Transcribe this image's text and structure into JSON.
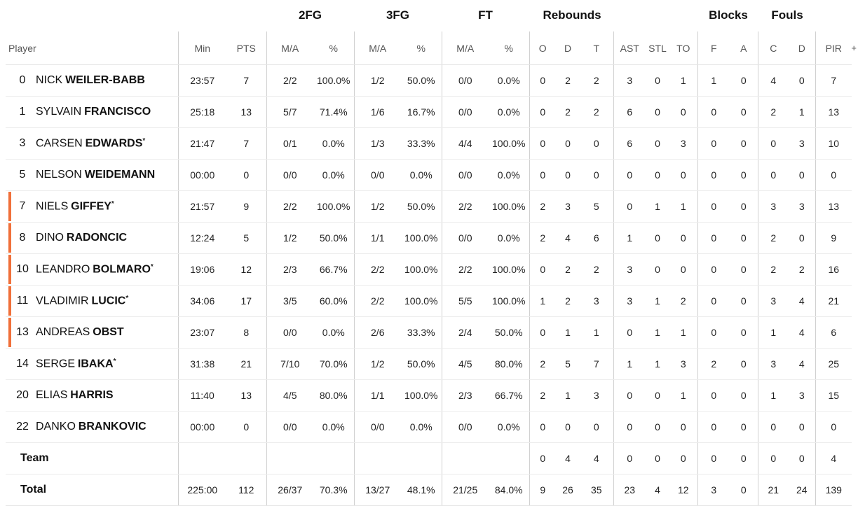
{
  "group_headers": {
    "fg2": "2FG",
    "fg3": "3FG",
    "ft": "FT",
    "rebounds": "Rebounds",
    "blocks": "Blocks",
    "fouls": "Fouls"
  },
  "columns": {
    "player": "Player",
    "min": "Min",
    "pts": "PTS",
    "fg2_ma": "M/A",
    "fg2_pct": "%",
    "fg3_ma": "M/A",
    "fg3_pct": "%",
    "ft_ma": "M/A",
    "ft_pct": "%",
    "reb_o": "O",
    "reb_d": "D",
    "reb_t": "T",
    "ast": "AST",
    "stl": "STL",
    "to": "TO",
    "blk_f": "F",
    "blk_a": "A",
    "foul_c": "C",
    "foul_d": "D",
    "pir": "PIR",
    "more": "+"
  },
  "players": [
    {
      "num": "0",
      "first": "NICK",
      "last": "WEILER-BABB",
      "starter": false,
      "on_court": false,
      "min": "23:57",
      "pts": "7",
      "fg2_ma": "2/2",
      "fg2_pct": "100.0%",
      "fg3_ma": "1/2",
      "fg3_pct": "50.0%",
      "ft_ma": "0/0",
      "ft_pct": "0.0%",
      "reb_o": "0",
      "reb_d": "2",
      "reb_t": "2",
      "ast": "3",
      "stl": "0",
      "to": "1",
      "blk_f": "1",
      "blk_a": "0",
      "foul_c": "4",
      "foul_d": "0",
      "pir": "7"
    },
    {
      "num": "1",
      "first": "SYLVAIN",
      "last": "FRANCISCO",
      "starter": false,
      "on_court": false,
      "min": "25:18",
      "pts": "13",
      "fg2_ma": "5/7",
      "fg2_pct": "71.4%",
      "fg3_ma": "1/6",
      "fg3_pct": "16.7%",
      "ft_ma": "0/0",
      "ft_pct": "0.0%",
      "reb_o": "0",
      "reb_d": "2",
      "reb_t": "2",
      "ast": "6",
      "stl": "0",
      "to": "0",
      "blk_f": "0",
      "blk_a": "0",
      "foul_c": "2",
      "foul_d": "1",
      "pir": "13"
    },
    {
      "num": "3",
      "first": "CARSEN",
      "last": "EDWARDS",
      "starter": true,
      "on_court": false,
      "min": "21:47",
      "pts": "7",
      "fg2_ma": "0/1",
      "fg2_pct": "0.0%",
      "fg3_ma": "1/3",
      "fg3_pct": "33.3%",
      "ft_ma": "4/4",
      "ft_pct": "100.0%",
      "reb_o": "0",
      "reb_d": "0",
      "reb_t": "0",
      "ast": "6",
      "stl": "0",
      "to": "3",
      "blk_f": "0",
      "blk_a": "0",
      "foul_c": "0",
      "foul_d": "3",
      "pir": "10"
    },
    {
      "num": "5",
      "first": "NELSON",
      "last": "WEIDEMANN",
      "starter": false,
      "on_court": false,
      "min": "00:00",
      "pts": "0",
      "fg2_ma": "0/0",
      "fg2_pct": "0.0%",
      "fg3_ma": "0/0",
      "fg3_pct": "0.0%",
      "ft_ma": "0/0",
      "ft_pct": "0.0%",
      "reb_o": "0",
      "reb_d": "0",
      "reb_t": "0",
      "ast": "0",
      "stl": "0",
      "to": "0",
      "blk_f": "0",
      "blk_a": "0",
      "foul_c": "0",
      "foul_d": "0",
      "pir": "0"
    },
    {
      "num": "7",
      "first": "NIELS",
      "last": "GIFFEY",
      "starter": true,
      "on_court": true,
      "min": "21:57",
      "pts": "9",
      "fg2_ma": "2/2",
      "fg2_pct": "100.0%",
      "fg3_ma": "1/2",
      "fg3_pct": "50.0%",
      "ft_ma": "2/2",
      "ft_pct": "100.0%",
      "reb_o": "2",
      "reb_d": "3",
      "reb_t": "5",
      "ast": "0",
      "stl": "1",
      "to": "1",
      "blk_f": "0",
      "blk_a": "0",
      "foul_c": "3",
      "foul_d": "3",
      "pir": "13"
    },
    {
      "num": "8",
      "first": "DINO",
      "last": "RADONCIC",
      "starter": false,
      "on_court": true,
      "min": "12:24",
      "pts": "5",
      "fg2_ma": "1/2",
      "fg2_pct": "50.0%",
      "fg3_ma": "1/1",
      "fg3_pct": "100.0%",
      "ft_ma": "0/0",
      "ft_pct": "0.0%",
      "reb_o": "2",
      "reb_d": "4",
      "reb_t": "6",
      "ast": "1",
      "stl": "0",
      "to": "0",
      "blk_f": "0",
      "blk_a": "0",
      "foul_c": "2",
      "foul_d": "0",
      "pir": "9"
    },
    {
      "num": "10",
      "first": "LEANDRO",
      "last": "BOLMARO",
      "starter": true,
      "on_court": true,
      "min": "19:06",
      "pts": "12",
      "fg2_ma": "2/3",
      "fg2_pct": "66.7%",
      "fg3_ma": "2/2",
      "fg3_pct": "100.0%",
      "ft_ma": "2/2",
      "ft_pct": "100.0%",
      "reb_o": "0",
      "reb_d": "2",
      "reb_t": "2",
      "ast": "3",
      "stl": "0",
      "to": "0",
      "blk_f": "0",
      "blk_a": "0",
      "foul_c": "2",
      "foul_d": "2",
      "pir": "16"
    },
    {
      "num": "11",
      "first": "VLADIMIR",
      "last": "LUCIC",
      "starter": true,
      "on_court": true,
      "min": "34:06",
      "pts": "17",
      "fg2_ma": "3/5",
      "fg2_pct": "60.0%",
      "fg3_ma": "2/2",
      "fg3_pct": "100.0%",
      "ft_ma": "5/5",
      "ft_pct": "100.0%",
      "reb_o": "1",
      "reb_d": "2",
      "reb_t": "3",
      "ast": "3",
      "stl": "1",
      "to": "2",
      "blk_f": "0",
      "blk_a": "0",
      "foul_c": "3",
      "foul_d": "4",
      "pir": "21"
    },
    {
      "num": "13",
      "first": "ANDREAS",
      "last": "OBST",
      "starter": false,
      "on_court": true,
      "min": "23:07",
      "pts": "8",
      "fg2_ma": "0/0",
      "fg2_pct": "0.0%",
      "fg3_ma": "2/6",
      "fg3_pct": "33.3%",
      "ft_ma": "2/4",
      "ft_pct": "50.0%",
      "reb_o": "0",
      "reb_d": "1",
      "reb_t": "1",
      "ast": "0",
      "stl": "1",
      "to": "1",
      "blk_f": "0",
      "blk_a": "0",
      "foul_c": "1",
      "foul_d": "4",
      "pir": "6"
    },
    {
      "num": "14",
      "first": "SERGE",
      "last": "IBAKA",
      "starter": true,
      "on_court": false,
      "min": "31:38",
      "pts": "21",
      "fg2_ma": "7/10",
      "fg2_pct": "70.0%",
      "fg3_ma": "1/2",
      "fg3_pct": "50.0%",
      "ft_ma": "4/5",
      "ft_pct": "80.0%",
      "reb_o": "2",
      "reb_d": "5",
      "reb_t": "7",
      "ast": "1",
      "stl": "1",
      "to": "3",
      "blk_f": "2",
      "blk_a": "0",
      "foul_c": "3",
      "foul_d": "4",
      "pir": "25"
    },
    {
      "num": "20",
      "first": "ELIAS",
      "last": "HARRIS",
      "starter": false,
      "on_court": false,
      "min": "11:40",
      "pts": "13",
      "fg2_ma": "4/5",
      "fg2_pct": "80.0%",
      "fg3_ma": "1/1",
      "fg3_pct": "100.0%",
      "ft_ma": "2/3",
      "ft_pct": "66.7%",
      "reb_o": "2",
      "reb_d": "1",
      "reb_t": "3",
      "ast": "0",
      "stl": "0",
      "to": "1",
      "blk_f": "0",
      "blk_a": "0",
      "foul_c": "1",
      "foul_d": "3",
      "pir": "15"
    },
    {
      "num": "22",
      "first": "DANKO",
      "last": "BRANKOVIC",
      "starter": false,
      "on_court": false,
      "min": "00:00",
      "pts": "0",
      "fg2_ma": "0/0",
      "fg2_pct": "0.0%",
      "fg3_ma": "0/0",
      "fg3_pct": "0.0%",
      "ft_ma": "0/0",
      "ft_pct": "0.0%",
      "reb_o": "0",
      "reb_d": "0",
      "reb_t": "0",
      "ast": "0",
      "stl": "0",
      "to": "0",
      "blk_f": "0",
      "blk_a": "0",
      "foul_c": "0",
      "foul_d": "0",
      "pir": "0"
    }
  ],
  "team": {
    "label": "Team",
    "min": "",
    "pts": "",
    "fg2_ma": "",
    "fg2_pct": "",
    "fg3_ma": "",
    "fg3_pct": "",
    "ft_ma": "",
    "ft_pct": "",
    "reb_o": "0",
    "reb_d": "4",
    "reb_t": "4",
    "ast": "0",
    "stl": "0",
    "to": "0",
    "blk_f": "0",
    "blk_a": "0",
    "foul_c": "0",
    "foul_d": "0",
    "pir": "4"
  },
  "total": {
    "label": "Total",
    "min": "225:00",
    "pts": "112",
    "fg2_ma": "26/37",
    "fg2_pct": "70.3%",
    "fg3_ma": "13/27",
    "fg3_pct": "48.1%",
    "ft_ma": "21/25",
    "ft_pct": "84.0%",
    "reb_o": "9",
    "reb_d": "26",
    "reb_t": "35",
    "ast": "23",
    "stl": "4",
    "to": "12",
    "blk_f": "3",
    "blk_a": "0",
    "foul_c": "21",
    "foul_d": "24",
    "pir": "139"
  },
  "colors": {
    "on_court_marker": "#f0703a"
  }
}
